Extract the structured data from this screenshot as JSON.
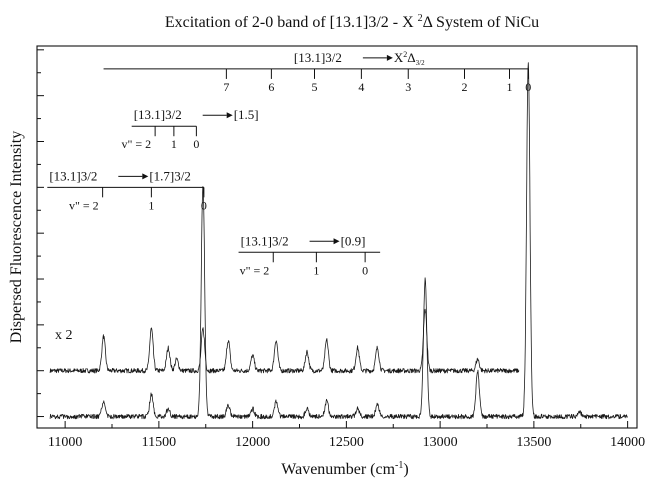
{
  "chart_data": {
    "type": "line",
    "title": "Excitation of 2-0 band of [13.1]3/2 - X ²Δ System of NiCu",
    "title_parts": [
      "Excitation of 2-0 band of [13.1]3/2 - X ",
      "2",
      "Δ System of NiCu"
    ],
    "xlabel": "Wavenumber (cm",
    "xlabel_sup": "-1",
    "xlabel_end": ")",
    "ylabel": "Dispersed Fluorescence Intensity",
    "xlim": [
      10850,
      14050
    ],
    "ylim": [
      0,
      1
    ],
    "x_ticks": [
      11000,
      11500,
      12000,
      12500,
      13000,
      13500,
      14000
    ],
    "x_tick_labels": [
      "11000",
      "11500",
      "12000",
      "12500",
      "13000",
      "13500",
      "14000"
    ],
    "grid": false,
    "annotations": [
      {
        "text": "x 2",
        "x": 10920,
        "y": 0.27
      }
    ],
    "series": [
      {
        "x_start": 10920,
        "x_end": 13420,
        "baseline": 0.15,
        "peaks": [
          {
            "x": 11205,
            "y": 0.24
          },
          {
            "x": 11460,
            "y": 0.26
          },
          {
            "x": 11550,
            "y": 0.21
          },
          {
            "x": 11595,
            "y": 0.18
          },
          {
            "x": 11735,
            "y": 0.26
          },
          {
            "x": 11870,
            "y": 0.23
          },
          {
            "x": 12000,
            "y": 0.19
          },
          {
            "x": 12125,
            "y": 0.23
          },
          {
            "x": 12290,
            "y": 0.2
          },
          {
            "x": 12395,
            "y": 0.23
          },
          {
            "x": 12560,
            "y": 0.21
          },
          {
            "x": 12665,
            "y": 0.21
          },
          {
            "x": 12920,
            "y": 0.31
          },
          {
            "x": 13200,
            "y": 0.18
          }
        ]
      },
      {
        "x_start": 10920,
        "x_end": 14000,
        "baseline": 0.03,
        "peaks": [
          {
            "x": 11205,
            "y": 0.07
          },
          {
            "x": 11460,
            "y": 0.09
          },
          {
            "x": 11550,
            "y": 0.05
          },
          {
            "x": 11735,
            "y": 0.64
          },
          {
            "x": 11870,
            "y": 0.06
          },
          {
            "x": 12000,
            "y": 0.05
          },
          {
            "x": 12125,
            "y": 0.07
          },
          {
            "x": 12290,
            "y": 0.05
          },
          {
            "x": 12395,
            "y": 0.07
          },
          {
            "x": 12560,
            "y": 0.05
          },
          {
            "x": 12665,
            "y": 0.06
          },
          {
            "x": 12920,
            "y": 0.39
          },
          {
            "x": 13200,
            "y": 0.15
          },
          {
            "x": 13470,
            "y": 0.96
          },
          {
            "x": 13745,
            "y": 0.04
          }
        ]
      }
    ],
    "progressions": [
      {
        "label": "[13.1]3/2",
        "target": "X",
        "target_sup": "2",
        "target_main": "Δ",
        "target_sub": "3/2",
        "y": 0.94,
        "x_left": 11205,
        "x_right": 13470,
        "levels": [
          {
            "label": "7",
            "x": 11860
          },
          {
            "label": "6",
            "x": 12100
          },
          {
            "label": "5",
            "x": 12330
          },
          {
            "label": "4",
            "x": 12580
          },
          {
            "label": "3",
            "x": 12830
          },
          {
            "label": "2",
            "x": 13130
          },
          {
            "label": "1",
            "x": 13370
          },
          {
            "label": "0",
            "x": 13470
          }
        ]
      },
      {
        "label": "[13.1]3/2",
        "target": "[1.5]",
        "vlabel": "v\" = 2",
        "y": 0.79,
        "x_left": 11355,
        "x_right": 11700,
        "levels": [
          {
            "label": "",
            "x": 11480
          },
          {
            "label": "1",
            "x": 11580
          },
          {
            "label": "0",
            "x": 11700
          }
        ]
      },
      {
        "label": "[13.1]3/2",
        "target": "[1.7]3/2",
        "vlabel": "v\" = 2",
        "y": 0.63,
        "x_left": 10905,
        "x_right": 11740,
        "levels": [
          {
            "label": "",
            "x": 11200
          },
          {
            "label": "1",
            "x": 11460
          },
          {
            "label": "0",
            "x": 11740
          }
        ]
      },
      {
        "label": "[13.1]3/2",
        "target": "[0.9]",
        "vlabel": "v\" = 2",
        "y": 0.46,
        "x_left": 11925,
        "x_right": 12680,
        "levels": [
          {
            "label": "",
            "x": 12110
          },
          {
            "label": "1",
            "x": 12340
          },
          {
            "label": "0",
            "x": 12600
          }
        ]
      }
    ]
  }
}
